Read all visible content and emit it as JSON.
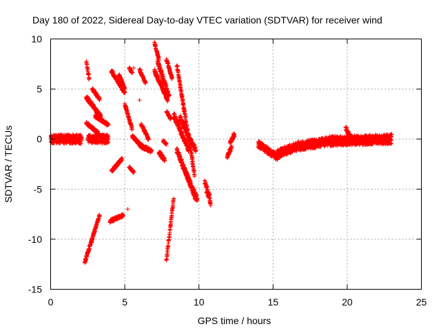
{
  "chart_data": {
    "type": "scatter",
    "title": "Day 180 of 2022, Sidereal Day-to-day VTEC variation (SDTVAR) for receiver wind",
    "xlabel": "GPS time / hours",
    "ylabel": "SDTVAR / TECUs",
    "xlim": [
      0,
      25
    ],
    "ylim": [
      -15,
      10
    ],
    "x_ticks": [
      0,
      5,
      10,
      15,
      20,
      25
    ],
    "y_ticks": [
      -15,
      -10,
      -5,
      0,
      5,
      10
    ],
    "x_tick_labels": [
      "0",
      "5",
      "10",
      "15",
      "20",
      "25"
    ],
    "y_tick_labels": [
      "-15",
      "-10",
      "-5",
      "0",
      "5",
      "10"
    ],
    "grid": true,
    "marker": "plus",
    "series": [
      {
        "name": "SDTVAR",
        "color": "#ff0000",
        "segments": [
          {
            "x0": 0.0,
            "x1": 2.1,
            "y0": 0.0,
            "y1": 0.0,
            "spread": 0.9
          },
          {
            "x0": 2.4,
            "x1": 2.6,
            "y0": 7.8,
            "y1": 6.0,
            "spread": 0.4
          },
          {
            "x0": 2.4,
            "x1": 3.4,
            "y0": 4.2,
            "y1": 2.2,
            "spread": 0.4
          },
          {
            "x0": 2.5,
            "x1": 3.9,
            "y0": 0.0,
            "y1": 0.0,
            "spread": 0.9
          },
          {
            "x0": 2.4,
            "x1": 3.2,
            "y0": 1.6,
            "y1": 0.6,
            "spread": 0.3
          },
          {
            "x0": 3.0,
            "x1": 3.9,
            "y0": 2.3,
            "y1": 1.4,
            "spread": 0.3
          },
          {
            "x0": 2.8,
            "x1": 3.3,
            "y0": 5.0,
            "y1": 4.0,
            "spread": 0.3
          },
          {
            "x0": 2.3,
            "x1": 3.3,
            "y0": -12.3,
            "y1": -7.6,
            "spread": 0.3
          },
          {
            "x0": 4.0,
            "x1": 4.9,
            "y0": -8.2,
            "y1": -7.6,
            "spread": 0.3
          },
          {
            "x0": 4.1,
            "x1": 4.8,
            "y0": -3.2,
            "y1": -2.0,
            "spread": 0.3
          },
          {
            "x0": 4.1,
            "x1": 5.0,
            "y0": 6.8,
            "y1": 4.6,
            "spread": 0.3
          },
          {
            "x0": 4.6,
            "x1": 5.0,
            "y0": 6.4,
            "y1": 5.0,
            "spread": 0.3
          },
          {
            "x0": 5.0,
            "x1": 5.5,
            "y0": 3.5,
            "y1": 1.0,
            "spread": 0.3
          },
          {
            "x0": 5.5,
            "x1": 6.0,
            "y0": 0.3,
            "y1": -0.5,
            "spread": 0.3
          },
          {
            "x0": 5.3,
            "x1": 5.5,
            "y0": 7.1,
            "y1": 6.6,
            "spread": 0.2
          },
          {
            "x0": 5.3,
            "x1": 5.6,
            "y0": -2.8,
            "y1": -3.3,
            "spread": 0.2
          },
          {
            "x0": 6.0,
            "x1": 6.4,
            "y0": 6.9,
            "y1": 5.6,
            "spread": 0.2
          },
          {
            "x0": 6.1,
            "x1": 6.6,
            "y0": 1.5,
            "y1": 0.0,
            "spread": 0.3
          },
          {
            "x0": 6.0,
            "x1": 6.8,
            "y0": -0.6,
            "y1": -1.2,
            "spread": 0.4
          },
          {
            "x0": 7.0,
            "x1": 7.3,
            "y0": 9.6,
            "y1": 8.0,
            "spread": 0.3
          },
          {
            "x0": 7.2,
            "x1": 8.0,
            "y0": 7.8,
            "y1": 4.2,
            "spread": 0.5
          },
          {
            "x0": 7.0,
            "x1": 7.7,
            "y0": 6.8,
            "y1": 4.6,
            "spread": 0.4
          },
          {
            "x0": 7.4,
            "x1": 7.9,
            "y0": 5.6,
            "y1": 3.8,
            "spread": 0.3
          },
          {
            "x0": 7.3,
            "x1": 7.7,
            "y0": -1.3,
            "y1": -2.1,
            "spread": 0.4
          },
          {
            "x0": 7.6,
            "x1": 7.8,
            "y0": -0.2,
            "y1": -0.5,
            "spread": 0.2
          },
          {
            "x0": 7.8,
            "x1": 8.2,
            "y0": 8.0,
            "y1": 6.0,
            "spread": 0.3
          },
          {
            "x0": 7.8,
            "x1": 8.1,
            "y0": 2.8,
            "y1": 2.0,
            "spread": 0.3
          },
          {
            "x0": 7.8,
            "x1": 8.3,
            "y0": -12.2,
            "y1": -5.8,
            "spread": 0.3
          },
          {
            "x0": 8.5,
            "x1": 9.7,
            "y0": 7.5,
            "y1": -3.5,
            "spread": 0.5
          },
          {
            "x0": 8.3,
            "x1": 9.3,
            "y0": 2.4,
            "y1": -1.0,
            "spread": 0.6
          },
          {
            "x0": 8.7,
            "x1": 9.8,
            "y0": 2.2,
            "y1": -1.2,
            "spread": 0.5
          },
          {
            "x0": 8.5,
            "x1": 9.8,
            "y0": -1.0,
            "y1": -6.0,
            "spread": 0.6
          },
          {
            "x0": 9.0,
            "x1": 9.9,
            "y0": -3.0,
            "y1": -6.0,
            "spread": 0.5
          },
          {
            "x0": 10.4,
            "x1": 10.8,
            "y0": -4.5,
            "y1": -6.3,
            "spread": 0.8
          },
          {
            "x0": 11.9,
            "x1": 12.2,
            "y0": -1.8,
            "y1": -0.8,
            "spread": 0.4
          },
          {
            "x0": 12.1,
            "x1": 12.4,
            "y0": -0.3,
            "y1": 0.4,
            "spread": 0.4
          },
          {
            "x0": 14.0,
            "x1": 15.3,
            "y0": -0.5,
            "y1": -1.8,
            "spread": 0.7
          },
          {
            "x0": 15.3,
            "x1": 16.8,
            "y0": -1.5,
            "y1": -0.6,
            "spread": 0.9
          },
          {
            "x0": 16.8,
            "x1": 18.8,
            "y0": -0.7,
            "y1": -0.2,
            "spread": 0.9
          },
          {
            "x0": 18.8,
            "x1": 23.0,
            "y0": -0.2,
            "y1": 0.0,
            "spread": 1.0
          },
          {
            "x0": 19.9,
            "x1": 20.2,
            "y0": 1.1,
            "y1": 0.3,
            "spread": 0.4
          }
        ],
        "isolated_points": [
          {
            "x": 4.2,
            "y": 6.8
          },
          {
            "x": 5.6,
            "y": 7.1
          },
          {
            "x": 6.1,
            "y": 6.9
          },
          {
            "x": 5.2,
            "y": -7.0
          },
          {
            "x": 6.0,
            "y": 3.9
          },
          {
            "x": 12.3,
            "y": 0.5
          }
        ]
      }
    ]
  }
}
